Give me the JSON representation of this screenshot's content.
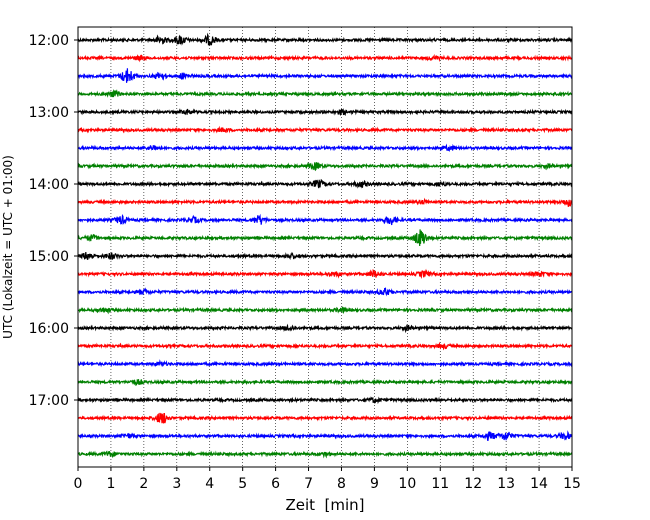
{
  "chart_data": {
    "type": "line",
    "title": "",
    "xlabel": "Zeit  [min]",
    "ylabel": "UTC (Lokalzeit = UTC + 01:00)",
    "xlim": [
      0,
      15
    ],
    "x_ticks": [
      "0",
      "1",
      "2",
      "3",
      "4",
      "5",
      "6",
      "7",
      "8",
      "9",
      "10",
      "11",
      "12",
      "13",
      "14",
      "15"
    ],
    "y_ticks": [
      "12:00",
      "13:00",
      "14:00",
      "15:00",
      "16:00",
      "17:00"
    ],
    "grid": "vertical-dotted",
    "legend": "none",
    "trace_colors": [
      "#000000",
      "#ff0000",
      "#0000ff",
      "#008000"
    ],
    "traces": [
      {
        "time": "12:00",
        "color": "#000000",
        "events": [
          [
            2.5,
            3.5
          ],
          [
            3.1,
            4.0
          ],
          [
            4.0,
            4.5
          ]
        ]
      },
      {
        "time": "12:15",
        "color": "#ff0000",
        "events": [
          [
            1.9,
            1.8
          ],
          [
            10.8,
            1.5
          ]
        ]
      },
      {
        "time": "12:30",
        "color": "#0000ff",
        "events": [
          [
            1.5,
            7.0
          ],
          [
            2.5,
            3.0
          ],
          [
            3.2,
            2.5
          ]
        ]
      },
      {
        "time": "12:45",
        "color": "#008000",
        "events": [
          [
            1.1,
            2.5
          ]
        ]
      },
      {
        "time": "13:00",
        "color": "#000000",
        "events": [
          [
            3.3,
            2.0
          ],
          [
            8.0,
            1.8
          ]
        ]
      },
      {
        "time": "13:15",
        "color": "#ff0000",
        "events": [
          [
            4.4,
            1.5
          ]
        ]
      },
      {
        "time": "13:30",
        "color": "#0000ff",
        "events": [
          [
            2.3,
            2.0
          ],
          [
            11.3,
            1.8
          ]
        ]
      },
      {
        "time": "13:45",
        "color": "#008000",
        "events": [
          [
            7.2,
            3.0
          ],
          [
            14.3,
            1.5
          ]
        ]
      },
      {
        "time": "14:00",
        "color": "#000000",
        "events": [
          [
            7.3,
            3.5
          ],
          [
            8.6,
            2.5
          ],
          [
            11.0,
            2.0
          ]
        ]
      },
      {
        "time": "14:15",
        "color": "#ff0000",
        "events": [
          [
            10.5,
            1.6
          ],
          [
            14.9,
            3.5
          ]
        ]
      },
      {
        "time": "14:30",
        "color": "#0000ff",
        "events": [
          [
            1.3,
            3.5
          ],
          [
            5.5,
            4.0
          ],
          [
            9.5,
            4.0
          ],
          [
            3.5,
            2.5
          ]
        ]
      },
      {
        "time": "14:45",
        "color": "#008000",
        "events": [
          [
            0.4,
            2.5
          ],
          [
            10.4,
            8.0
          ]
        ]
      },
      {
        "time": "15:00",
        "color": "#000000",
        "events": [
          [
            0.3,
            3.5
          ],
          [
            1.0,
            2.5
          ],
          [
            6.5,
            2.0
          ]
        ]
      },
      {
        "time": "15:15",
        "color": "#ff0000",
        "events": [
          [
            7.8,
            2.0
          ],
          [
            9.0,
            3.0
          ],
          [
            10.5,
            2.5
          ],
          [
            14.0,
            2.0
          ]
        ]
      },
      {
        "time": "15:30",
        "color": "#0000ff",
        "events": [
          [
            2.0,
            2.0
          ],
          [
            9.3,
            3.0
          ]
        ]
      },
      {
        "time": "15:45",
        "color": "#008000",
        "events": [
          [
            0.8,
            2.0
          ],
          [
            8.0,
            1.8
          ]
        ]
      },
      {
        "time": "16:00",
        "color": "#000000",
        "events": [
          [
            6.4,
            2.0
          ],
          [
            10.0,
            2.0
          ]
        ]
      },
      {
        "time": "16:15",
        "color": "#ff0000",
        "events": [
          [
            11.1,
            1.6
          ]
        ]
      },
      {
        "time": "16:30",
        "color": "#0000ff",
        "events": [
          [
            2.5,
            1.5
          ]
        ]
      },
      {
        "time": "16:45",
        "color": "#008000",
        "events": [
          [
            1.8,
            2.0
          ]
        ]
      },
      {
        "time": "17:00",
        "color": "#000000",
        "events": [
          [
            9.0,
            2.0
          ]
        ]
      },
      {
        "time": "17:15",
        "color": "#ff0000",
        "events": [
          [
            2.55,
            5.5
          ]
        ]
      },
      {
        "time": "17:30",
        "color": "#0000ff",
        "events": [
          [
            13.0,
            4.0
          ],
          [
            12.5,
            3.5
          ],
          [
            14.8,
            3.0
          ],
          [
            1.5,
            1.8
          ]
        ]
      },
      {
        "time": "17:45",
        "color": "#008000",
        "events": [
          [
            1.0,
            2.0
          ],
          [
            7.5,
            1.5
          ]
        ]
      }
    ]
  }
}
